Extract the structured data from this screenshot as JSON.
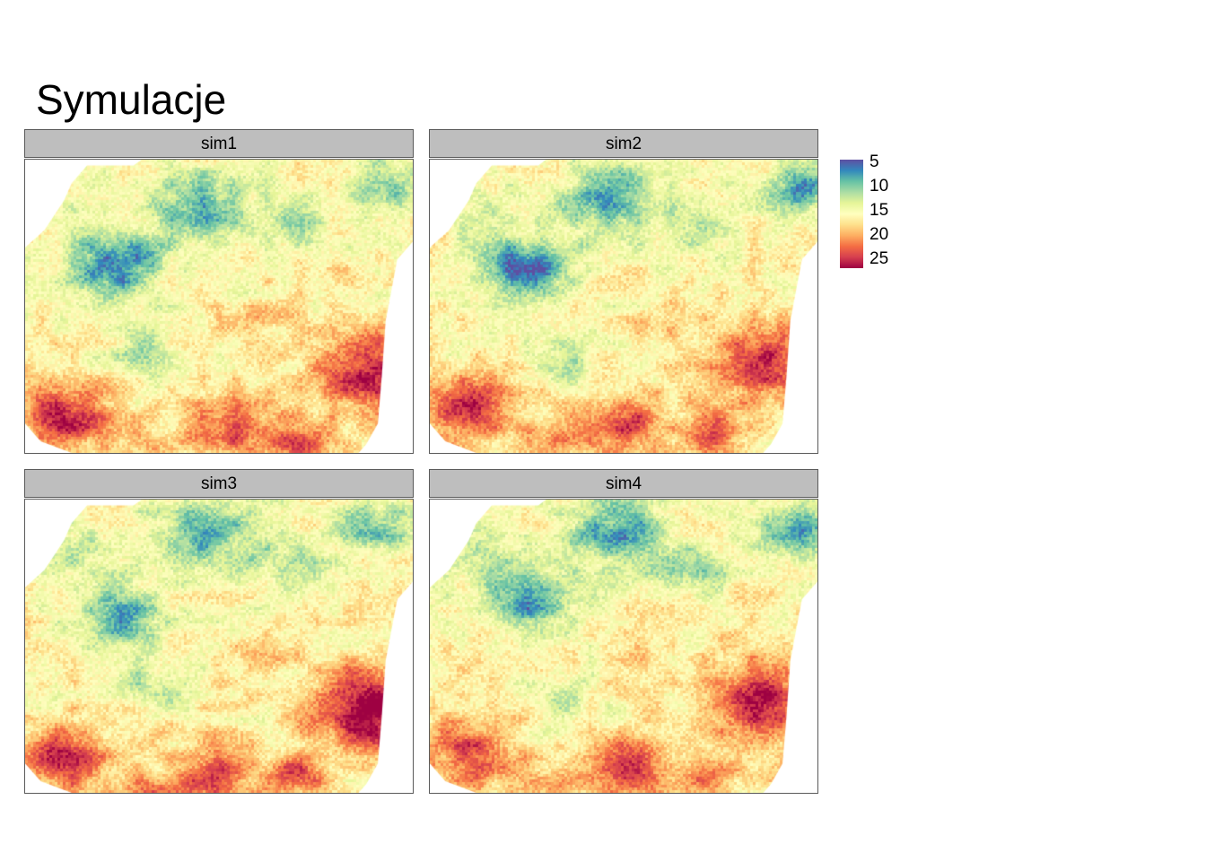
{
  "title": "Symulacje",
  "chart_data": {
    "type": "heatmap",
    "title": "Symulacje",
    "panels": [
      "sim1",
      "sim2",
      "sim3",
      "sim4"
    ],
    "legend": {
      "ticks": [
        "5",
        "10",
        "15",
        "20",
        "25"
      ],
      "values": [
        5,
        10,
        15,
        20,
        25
      ],
      "range": [
        4,
        26
      ],
      "palette": [
        "#5e4fa2",
        "#3288bd",
        "#66c2a5",
        "#abdda4",
        "#e6f598",
        "#ffffbf",
        "#fee08b",
        "#fdae61",
        "#f46d43",
        "#d53e4f",
        "#9e0142"
      ],
      "placement": "right"
    },
    "grid": false
  }
}
